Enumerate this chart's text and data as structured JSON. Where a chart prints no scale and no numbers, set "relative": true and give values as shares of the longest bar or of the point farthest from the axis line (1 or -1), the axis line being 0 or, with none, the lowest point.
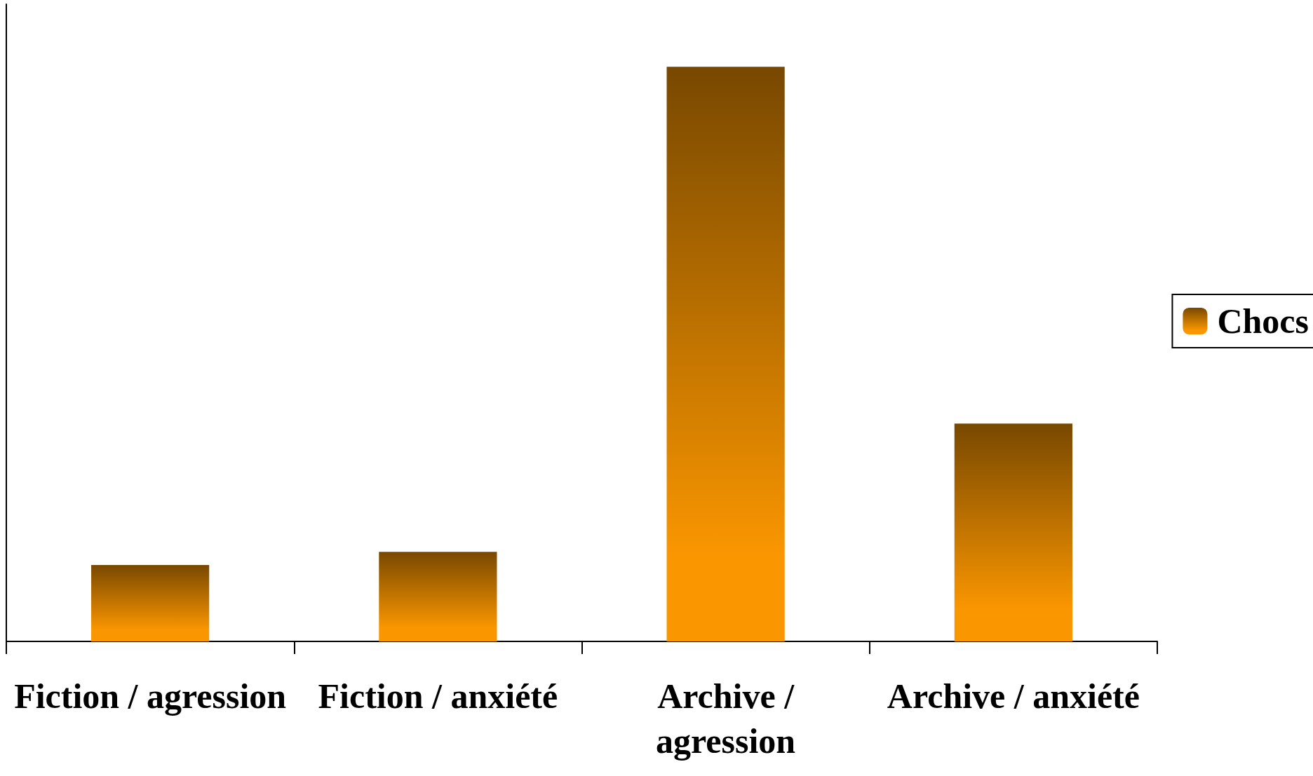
{
  "chart_data": {
    "type": "bar",
    "relative": true,
    "categories": [
      "Fiction / agression",
      "Fiction / anxiété",
      "Archive / agression",
      "Archive / anxiété"
    ],
    "series": [
      {
        "name": "Chocs",
        "color": "#fa9600",
        "values": [
          0.133,
          0.156,
          1,
          0.379
        ]
      }
    ],
    "legend": "right"
  }
}
